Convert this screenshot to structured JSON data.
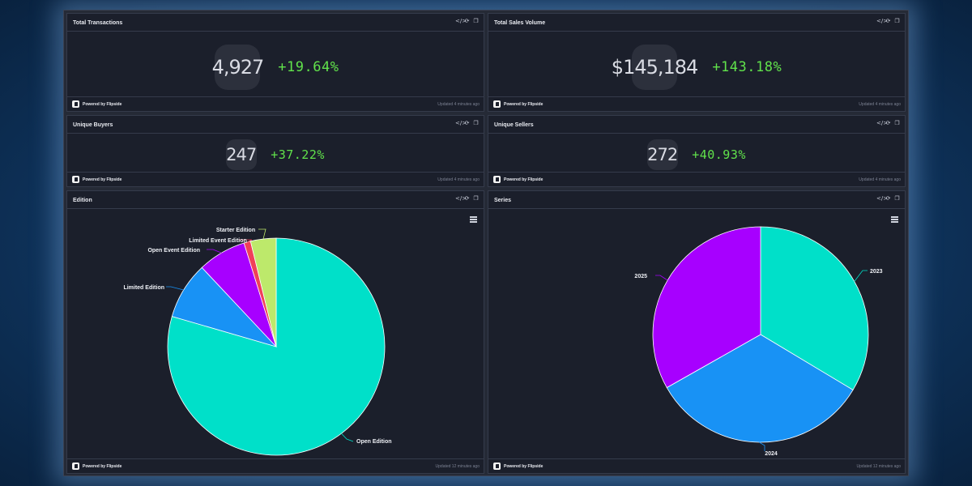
{
  "panels": {
    "total_transactions": {
      "title": "Total Transactions",
      "value": "4,927",
      "change": "+19.64%",
      "updated": "Updated 4 minutes ago"
    },
    "total_sales_volume": {
      "title": "Total Sales Volume",
      "value": "$145,184",
      "change": "+143.18%",
      "updated": "Updated 4 minutes ago"
    },
    "unique_buyers": {
      "title": "Unique Buyers",
      "value": "247",
      "change": "+37.22%",
      "updated": "Updated 4 minutes ago"
    },
    "unique_sellers": {
      "title": "Unique Sellers",
      "value": "272",
      "change": "+40.93%",
      "updated": "Updated 4 minutes ago"
    },
    "edition": {
      "title": "Edition",
      "updated": "Updated 12 minutes ago"
    },
    "series": {
      "title": "Series",
      "updated": "Updated 12 minutes ago"
    }
  },
  "footer": {
    "powered_by": "Powered by Flipside"
  },
  "icons": {
    "embed": "code-icon",
    "refresh": "refresh-icon",
    "copy": "copy-icon",
    "menu": "hamburger-menu-icon"
  },
  "colors": {
    "change_positive": "#61e24b",
    "panel_bg": "#1b1f2b"
  },
  "chart_data": [
    {
      "type": "pie",
      "title": "Edition",
      "categories": [
        "Open Edition",
        "Limited Edition",
        "Open Event Edition",
        "Limited Event Edition",
        "Starter Edition"
      ],
      "values": [
        79.5,
        8.5,
        7.2,
        1.0,
        3.8
      ],
      "colors": [
        "#00e0c9",
        "#1892f5",
        "#a700ff",
        "#f0405a",
        "#bde96b"
      ]
    },
    {
      "type": "pie",
      "title": "Series",
      "categories": [
        "2023",
        "2024",
        "2025"
      ],
      "values": [
        33.6,
        33.2,
        33.2
      ],
      "colors": [
        "#00e0c9",
        "#1892f5",
        "#a700ff"
      ]
    }
  ]
}
